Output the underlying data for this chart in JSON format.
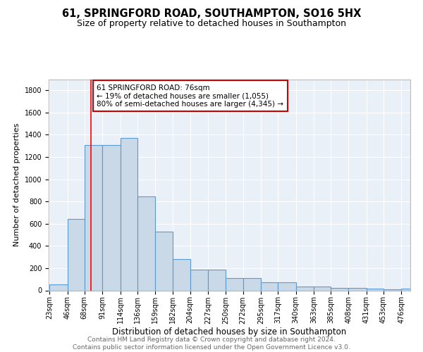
{
  "title": "61, SPRINGFORD ROAD, SOUTHAMPTON, SO16 5HX",
  "subtitle": "Size of property relative to detached houses in Southampton",
  "xlabel": "Distribution of detached houses by size in Southampton",
  "ylabel": "Number of detached properties",
  "bar_color": "#c9d9e8",
  "bar_edge_color": "#5b9bd5",
  "bg_color": "#eaf0f8",
  "grid_color": "white",
  "annotation_box_color": "#cc0000",
  "annotation_text": "61 SPRINGFORD ROAD: 76sqm\n← 19% of detached houses are smaller (1,055)\n80% of semi-detached houses are larger (4,345) →",
  "red_line_x": 76,
  "bins": [
    23,
    46,
    68,
    91,
    114,
    136,
    159,
    182,
    204,
    227,
    250,
    272,
    295,
    317,
    340,
    363,
    385,
    408,
    431,
    453,
    476
  ],
  "values": [
    55,
    640,
    1305,
    1310,
    1370,
    845,
    530,
    285,
    185,
    185,
    110,
    110,
    70,
    70,
    38,
    38,
    25,
    20,
    15,
    12,
    15
  ],
  "ylim": [
    0,
    1900
  ],
  "yticks": [
    0,
    200,
    400,
    600,
    800,
    1000,
    1200,
    1400,
    1600,
    1800
  ],
  "footer_text": "Contains HM Land Registry data © Crown copyright and database right 2024.\nContains public sector information licensed under the Open Government Licence v3.0.",
  "title_fontsize": 10.5,
  "subtitle_fontsize": 9,
  "xlabel_fontsize": 8.5,
  "ylabel_fontsize": 8,
  "tick_fontsize": 7,
  "footer_fontsize": 6.5,
  "annot_fontsize": 7.5
}
